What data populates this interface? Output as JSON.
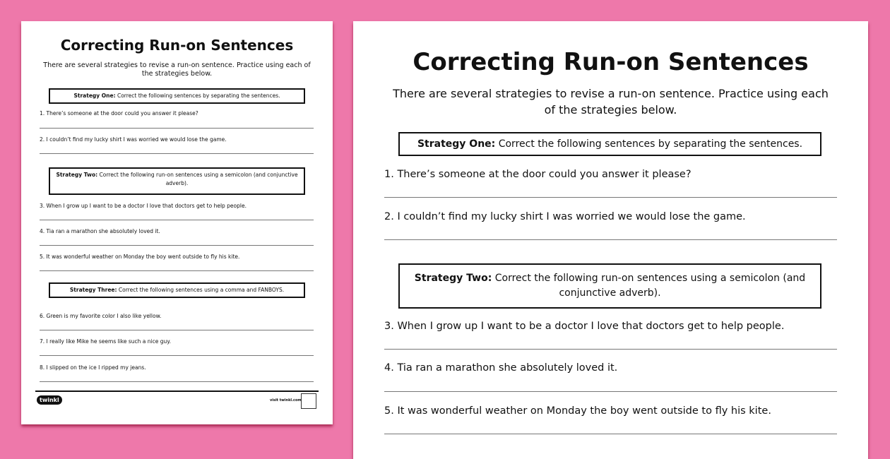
{
  "title": "Correcting Run-on Sentences",
  "intro": "There are several strategies to revise a run-on sentence. Practice using each of the strategies below.",
  "strategies": [
    {
      "label": "Strategy One:",
      "text": " Correct the following sentences by separating the sentences."
    },
    {
      "label": "Strategy Two:",
      "text": " Correct the following run-on sentences using a semicolon (and conjunctive adverb)."
    },
    {
      "label": "Strategy Three:",
      "text": " Correct the following sentences using a comma and FANBOYS."
    }
  ],
  "items": [
    "1. There’s someone at the door could you answer it please?",
    "2. I couldn’t find my lucky shirt I was worried we would lose the game.",
    "3. When I grow up I want to be a doctor I love that doctors get to help people.",
    "4. Tia ran a marathon she absolutely loved it.",
    "5. It was wonderful weather on Monday the boy went outside to fly his kite.",
    "6. Green is my favorite color I also like yellow.",
    "7. I really like Mike he seems like such a nice guy.",
    "8. I slipped on the ice I ripped my jeans."
  ],
  "footer": {
    "logo": "twinkl",
    "site": "visit twinkl.com"
  },
  "colors": {
    "background": "#ee78aa",
    "page": "#ffffff"
  }
}
